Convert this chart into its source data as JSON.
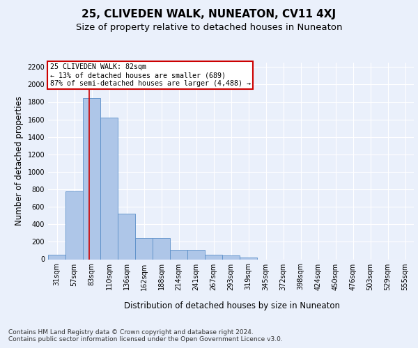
{
  "title": "25, CLIVEDEN WALK, NUNEATON, CV11 4XJ",
  "subtitle": "Size of property relative to detached houses in Nuneaton",
  "xlabel": "Distribution of detached houses by size in Nuneaton",
  "ylabel": "Number of detached properties",
  "bar_labels": [
    "31sqm",
    "57sqm",
    "83sqm",
    "110sqm",
    "136sqm",
    "162sqm",
    "188sqm",
    "214sqm",
    "241sqm",
    "267sqm",
    "293sqm",
    "319sqm",
    "345sqm",
    "372sqm",
    "398sqm",
    "424sqm",
    "450sqm",
    "476sqm",
    "503sqm",
    "529sqm",
    "555sqm"
  ],
  "bar_values": [
    55,
    780,
    1840,
    1620,
    520,
    240,
    240,
    105,
    105,
    55,
    40,
    20,
    0,
    0,
    0,
    0,
    0,
    0,
    0,
    0,
    0
  ],
  "bar_color": "#aec6e8",
  "bar_edge_color": "#5b8fc9",
  "property_line_x": 1.85,
  "annotation_text": "25 CLIVEDEN WALK: 82sqm\n← 13% of detached houses are smaller (689)\n87% of semi-detached houses are larger (4,488) →",
  "annotation_box_color": "#ffffff",
  "annotation_box_edge_color": "#cc0000",
  "line_color": "#cc0000",
  "ylim": [
    0,
    2250
  ],
  "yticks": [
    0,
    200,
    400,
    600,
    800,
    1000,
    1200,
    1400,
    1600,
    1800,
    2000,
    2200
  ],
  "footer_text": "Contains HM Land Registry data © Crown copyright and database right 2024.\nContains public sector information licensed under the Open Government Licence v3.0.",
  "background_color": "#eaf0fb",
  "plot_bg_color": "#eaf0fb",
  "grid_color": "#ffffff",
  "title_fontsize": 11,
  "subtitle_fontsize": 9.5,
  "axis_label_fontsize": 8.5,
  "tick_fontsize": 7,
  "footer_fontsize": 6.5
}
